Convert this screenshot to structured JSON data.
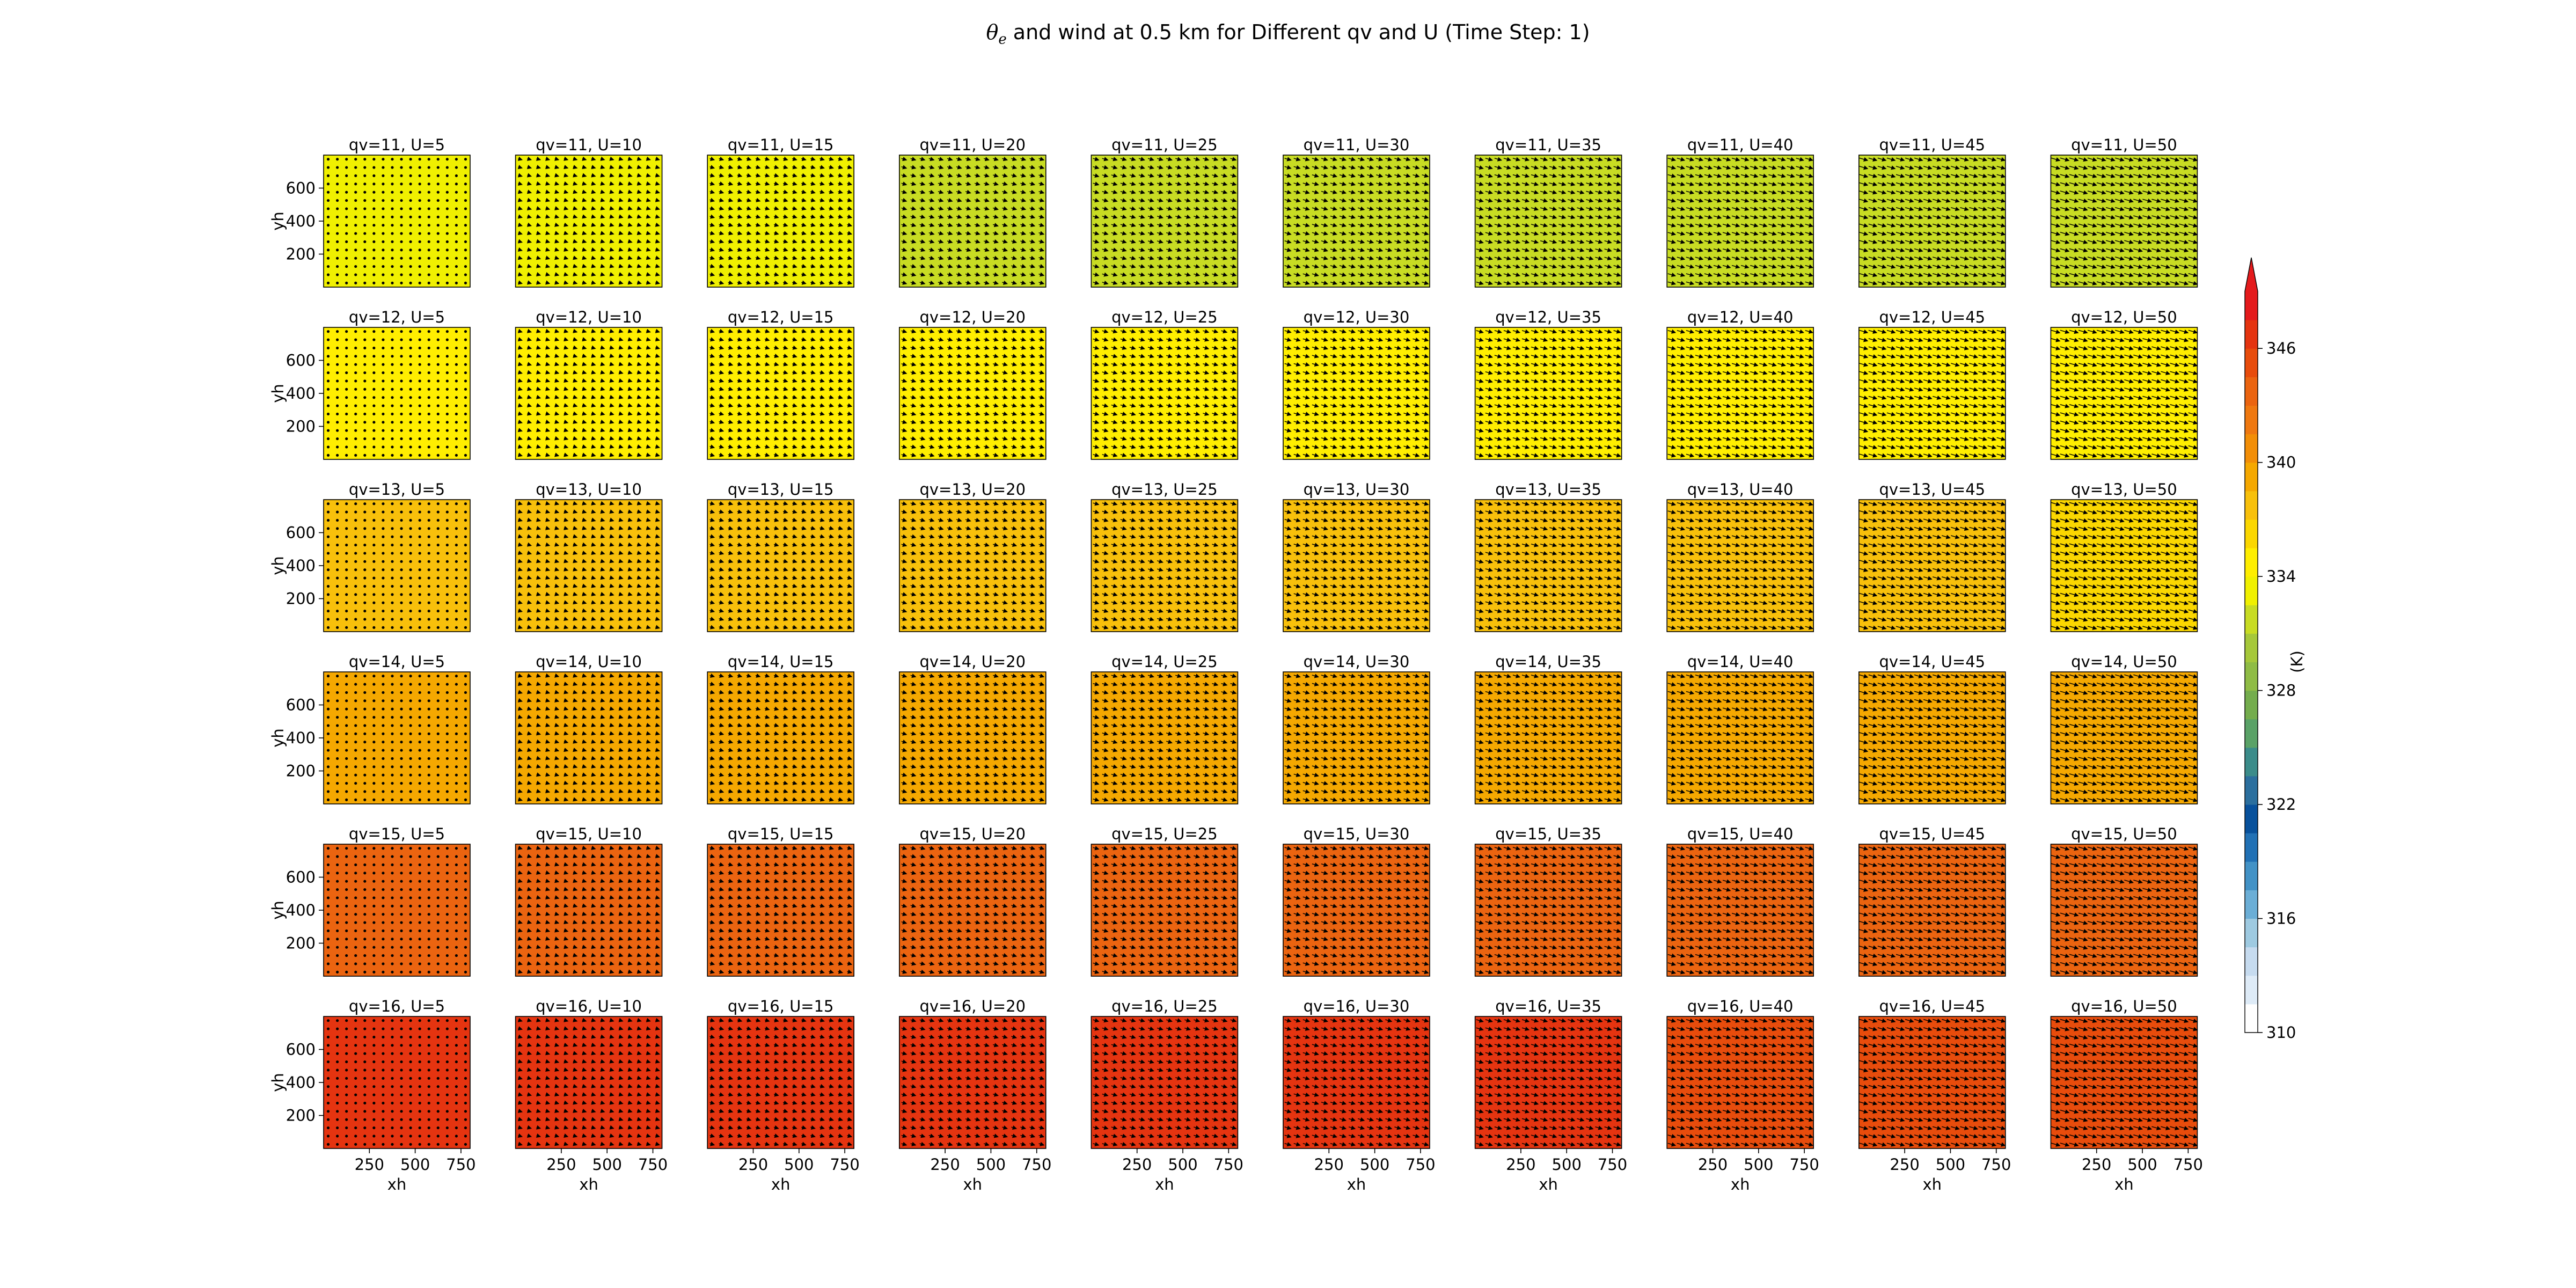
{
  "figure": {
    "title_symbol": "θ",
    "title_subscript": "e",
    "title_rest": " and wind at 0.5 km for Different qv and U (Time Step: 1)"
  },
  "chart_data": {
    "type": "heatmap",
    "title": "θe and wind at 0.5 km for Different qv and U (Time Step: 1)",
    "xlabel": "xh",
    "ylabel": "yh",
    "x_ticks": [
      250,
      500,
      750
    ],
    "y_ticks": [
      200,
      400,
      600
    ],
    "xlim": [
      0,
      800
    ],
    "ylim": [
      0,
      800
    ],
    "rows_qv": [
      11,
      12,
      13,
      14,
      15,
      16
    ],
    "cols_U": [
      5,
      10,
      15,
      20,
      25,
      30,
      35,
      40,
      45,
      50
    ],
    "theta_e_K": [
      [
        332.5,
        332.5,
        332.5,
        332.2,
        332.2,
        332.0,
        332.0,
        331.8,
        331.8,
        331.6
      ],
      [
        334.6,
        334.6,
        334.6,
        334.4,
        334.4,
        334.3,
        334.3,
        334.2,
        334.2,
        334.0
      ],
      [
        337.4,
        337.4,
        337.4,
        337.2,
        337.2,
        337.1,
        337.1,
        337.0,
        337.0,
        336.9
      ],
      [
        339.3,
        339.3,
        339.3,
        339.2,
        339.2,
        339.1,
        339.1,
        339.0,
        339.0,
        338.9
      ],
      [
        343.4,
        343.4,
        343.4,
        343.3,
        343.3,
        343.2,
        343.2,
        343.1,
        343.1,
        343.0
      ],
      [
        346.2,
        346.2,
        346.2,
        346.1,
        346.1,
        346.0,
        346.0,
        345.9,
        345.9,
        345.8
      ]
    ],
    "panel_titles": [
      [
        "qv=11, U=5",
        "qv=11, U=10",
        "qv=11, U=15",
        "qv=11, U=20",
        "qv=11, U=25",
        "qv=11, U=30",
        "qv=11, U=35",
        "qv=11, U=40",
        "qv=11, U=45",
        "qv=11, U=50"
      ],
      [
        "qv=12, U=5",
        "qv=12, U=10",
        "qv=12, U=15",
        "qv=12, U=20",
        "qv=12, U=25",
        "qv=12, U=30",
        "qv=12, U=35",
        "qv=12, U=40",
        "qv=12, U=45",
        "qv=12, U=50"
      ],
      [
        "qv=13, U=5",
        "qv=13, U=10",
        "qv=13, U=15",
        "qv=13, U=20",
        "qv=13, U=25",
        "qv=13, U=30",
        "qv=13, U=35",
        "qv=13, U=40",
        "qv=13, U=45",
        "qv=13, U=50"
      ],
      [
        "qv=14, U=5",
        "qv=14, U=10",
        "qv=14, U=15",
        "qv=14, U=20",
        "qv=14, U=25",
        "qv=14, U=30",
        "qv=14, U=35",
        "qv=14, U=40",
        "qv=14, U=45",
        "qv=14, U=50"
      ],
      [
        "qv=15, U=5",
        "qv=15, U=10",
        "qv=15, U=15",
        "qv=15, U=20",
        "qv=15, U=25",
        "qv=15, U=30",
        "qv=15, U=35",
        "qv=15, U=40",
        "qv=15, U=45",
        "qv=15, U=50"
      ],
      [
        "qv=16, U=5",
        "qv=16, U=10",
        "qv=16, U=15",
        "qv=16, U=20",
        "qv=16, U=25",
        "qv=16, U=30",
        "qv=16, U=35",
        "qv=16, U=40",
        "qv=16, U=45",
        "qv=16, U=50"
      ]
    ],
    "wind_vector_grid": 16,
    "colorbar": {
      "label": "(K)",
      "min": 310,
      "max": 349,
      "step": 1.5,
      "ticks": [
        310,
        316,
        322,
        328,
        334,
        340,
        346
      ],
      "extend": "max",
      "extend_color": "#e41a1c",
      "colors": [
        "#ffffff",
        "#deebf7",
        "#c6dbef",
        "#9ecae1",
        "#6baed6",
        "#4292c6",
        "#2171b5",
        "#08519c",
        "#2b6f9e",
        "#3b8c8a",
        "#5aa267",
        "#74ad4d",
        "#8fbc45",
        "#a6c83a",
        "#c8dc23",
        "#f0f000",
        "#ffee00",
        "#fbd700",
        "#f8c00b",
        "#f5a800",
        "#f28e07",
        "#ef7810",
        "#eb6410",
        "#e84c0c",
        "#e53410",
        "#e41a1c"
      ]
    },
    "grid": false
  }
}
